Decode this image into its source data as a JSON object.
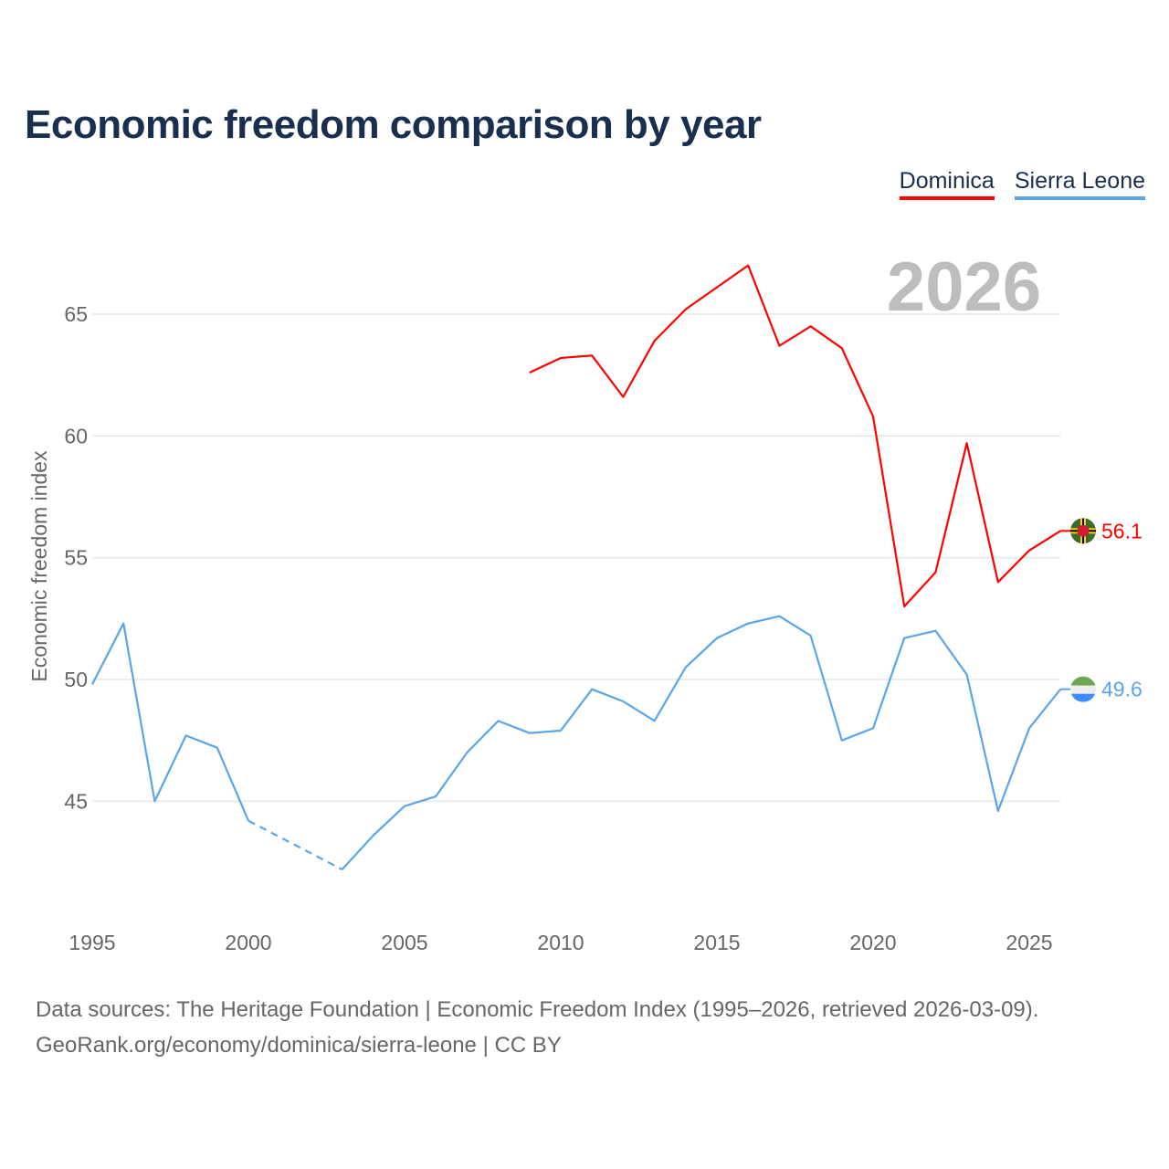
{
  "title": "Economic freedom comparison by year",
  "legend": [
    {
      "label": "Dominica",
      "color": "#ff0000"
    },
    {
      "label": "Sierra Leone",
      "color": "#5aa5e8"
    }
  ],
  "year_label": "2026",
  "footer": {
    "line1": "Data sources: The Heritage Foundation | Economic Freedom Index (1995–2026, retrieved 2026-03-09).",
    "line2": "GeoRank.org/economy/dominica/sierra-leone | CC BY"
  },
  "chart_data": {
    "type": "line",
    "title": "Economic freedom comparison by year",
    "xlabel": "",
    "ylabel": "Economic freedom index",
    "xlim": [
      1995,
      2026
    ],
    "ylim": [
      40,
      69
    ],
    "yticks": [
      45,
      50,
      55,
      60,
      65
    ],
    "xticks": [
      1995,
      2000,
      2005,
      2010,
      2015,
      2020,
      2025
    ],
    "grid": true,
    "legend_position": "top-right",
    "x": [
      1995,
      1996,
      1997,
      1998,
      1999,
      2000,
      2001,
      2002,
      2003,
      2004,
      2005,
      2006,
      2007,
      2008,
      2009,
      2010,
      2011,
      2012,
      2013,
      2014,
      2015,
      2016,
      2017,
      2018,
      2019,
      2020,
      2021,
      2022,
      2023,
      2024,
      2025,
      2026
    ],
    "series": [
      {
        "name": "Dominica",
        "color": "#ff0000",
        "end_label": "56.1",
        "values": [
          null,
          null,
          null,
          null,
          null,
          null,
          null,
          null,
          null,
          null,
          null,
          null,
          null,
          null,
          62.6,
          63.2,
          63.3,
          61.6,
          63.9,
          65.2,
          66.1,
          67.0,
          63.7,
          64.5,
          63.6,
          60.8,
          53.0,
          54.4,
          59.7,
          54.0,
          55.3,
          56.1
        ]
      },
      {
        "name": "Sierra Leone",
        "color": "#5aa5e8",
        "end_label": "49.6",
        "values": [
          49.8,
          52.3,
          45.0,
          47.7,
          47.2,
          44.2,
          null,
          null,
          42.2,
          43.6,
          44.8,
          45.2,
          47.0,
          48.3,
          47.8,
          47.9,
          49.6,
          49.1,
          48.3,
          50.5,
          51.7,
          52.3,
          52.6,
          51.8,
          47.5,
          48.0,
          51.7,
          52.0,
          50.2,
          44.6,
          48.0,
          49.6
        ]
      }
    ]
  }
}
